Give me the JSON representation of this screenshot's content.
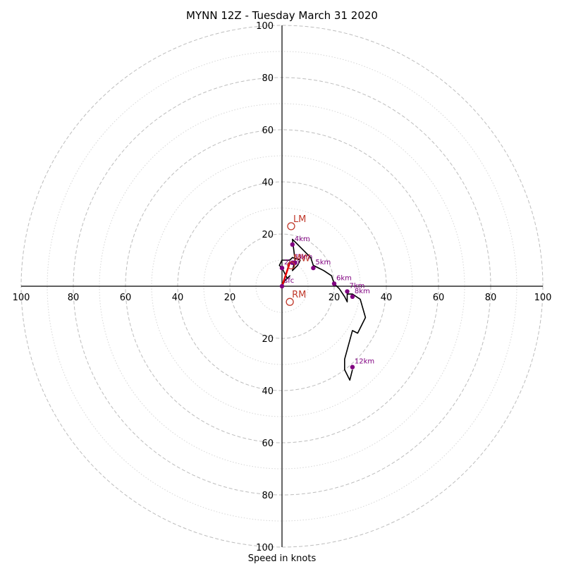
{
  "chart_data": {
    "type": "hodograph",
    "title": "MYNN 12Z - Tuesday March 31 2020",
    "xlabel": "Speed in knots",
    "rlim": [
      0,
      100
    ],
    "ring_major_step": 20,
    "ring_minor_step": 10,
    "tick_labels": [
      "100",
      "80",
      "60",
      "40",
      "20",
      "20",
      "40",
      "60",
      "80",
      "100"
    ],
    "tick_values_x": [
      -100,
      -80,
      -60,
      -40,
      -20,
      20,
      40,
      60,
      80,
      100
    ],
    "tick_values_y": [
      100,
      80,
      60,
      40,
      20,
      -20,
      -40,
      -60,
      -80,
      -100
    ],
    "hodograph_path": [
      [
        0,
        0
      ],
      [
        1,
        2
      ],
      [
        3,
        4
      ],
      [
        2,
        3
      ],
      [
        1,
        5
      ],
      [
        0,
        7
      ],
      [
        -1,
        8
      ],
      [
        0,
        10
      ],
      [
        3,
        10
      ],
      [
        4,
        11
      ],
      [
        7,
        10
      ],
      [
        6,
        8
      ],
      [
        4,
        6
      ],
      [
        5,
        10
      ],
      [
        4,
        18
      ],
      [
        5,
        17
      ],
      [
        8,
        14
      ],
      [
        11,
        11
      ],
      [
        12,
        8
      ],
      [
        14,
        7
      ],
      [
        16,
        6
      ],
      [
        19,
        4
      ],
      [
        20,
        1
      ],
      [
        22,
        -1
      ],
      [
        24,
        -4
      ],
      [
        25,
        -6
      ],
      [
        25,
        -3
      ],
      [
        27,
        -3
      ],
      [
        30,
        -5
      ],
      [
        32,
        -12
      ],
      [
        29,
        -18
      ],
      [
        27,
        -17
      ],
      [
        24,
        -28
      ],
      [
        24,
        -32
      ],
      [
        26,
        -36
      ],
      [
        27,
        -32
      ]
    ],
    "height_markers": [
      {
        "label": "sfc",
        "u": 0,
        "v": 0
      },
      {
        "label": "1km",
        "u": 4,
        "v": 9
      },
      {
        "label": "2km",
        "u": 0,
        "v": 7
      },
      {
        "label": "3km",
        "u": 5,
        "v": 9
      },
      {
        "label": "4km",
        "u": 4,
        "v": 16
      },
      {
        "label": "5km",
        "u": 12,
        "v": 7
      },
      {
        "label": "6km",
        "u": 20,
        "v": 1
      },
      {
        "label": "7km",
        "u": 25,
        "v": -2
      },
      {
        "label": "8km",
        "u": 27,
        "v": -4
      },
      {
        "label": "12km",
        "u": 27,
        "v": -31
      }
    ],
    "storm_motion": [
      {
        "label": "LM",
        "u": 3.5,
        "v": 23
      },
      {
        "label": "MW",
        "u": 3.5,
        "v": 8
      },
      {
        "label": "RM",
        "u": 3,
        "v": -6
      }
    ],
    "shear_vector": {
      "from": [
        0,
        0
      ],
      "to": [
        3,
        9
      ]
    },
    "colors": {
      "hodograph": "#000000",
      "height_markers": "#800080",
      "storm_motion": "#c0392b",
      "shear_vector": "#e60000",
      "rings": "#bdbdbd"
    }
  }
}
